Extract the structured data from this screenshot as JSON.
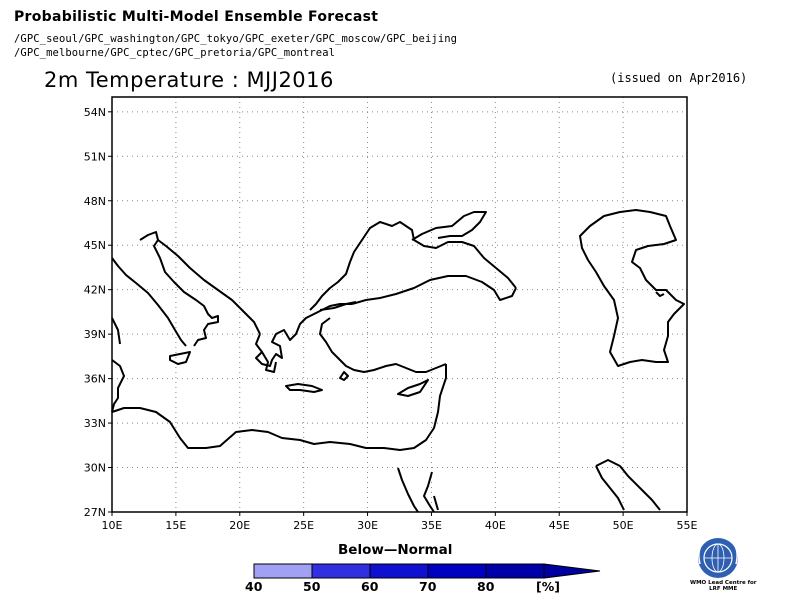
{
  "header": {
    "title": "Probabilistic Multi-Model Ensemble Forecast",
    "gpc_line1": "/GPC_seoul/GPC_washington/GPC_tokyo/GPC_exeter/GPC_moscow/GPC_beijing",
    "gpc_line2": "/GPC_melbourne/GPC_cptec/GPC_pretoria/GPC_montreal"
  },
  "map": {
    "title": "2m Temperature : MJJ2016",
    "issued": "(issued on Apr2016)",
    "lat_labels": [
      "54N",
      "51N",
      "48N",
      "45N",
      "42N",
      "39N",
      "36N",
      "33N",
      "30N",
      "27N"
    ],
    "lon_labels": [
      "10E",
      "15E",
      "20E",
      "25E",
      "30E",
      "35E",
      "40E",
      "45E",
      "50E",
      "55E"
    ],
    "lat_range": [
      27,
      55
    ],
    "lon_range": [
      10,
      55
    ],
    "grid": true,
    "coastline_color": "#000000"
  },
  "legend": {
    "title": "Below—Normal",
    "labels": [
      "40",
      "50",
      "60",
      "70",
      "80"
    ],
    "unit": "[%]",
    "colors": [
      "#a0a0f5",
      "#3030e0",
      "#1010d0",
      "#0000c0",
      "#0000a8",
      "#0000a0"
    ]
  },
  "logo": {
    "icon": "wmo-emblem-icon",
    "caption_line1": "WMO Lead Centre for",
    "caption_line2": "LRF MME"
  }
}
